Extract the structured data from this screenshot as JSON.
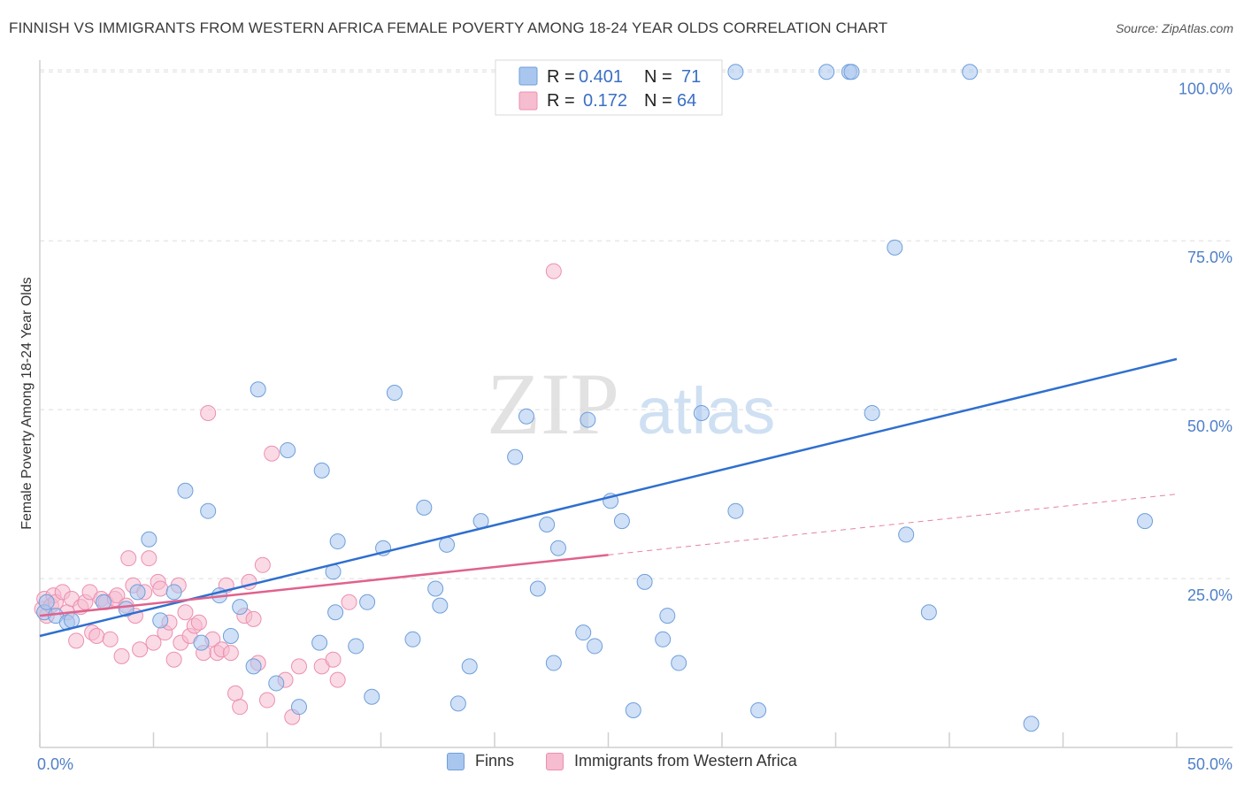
{
  "header": {
    "title": "FINNISH VS IMMIGRANTS FROM WESTERN AFRICA FEMALE POVERTY AMONG 18-24 YEAR OLDS CORRELATION CHART",
    "source": "Source: ZipAtlas.com"
  },
  "watermark": {
    "zip": "ZIP",
    "atlas": "atlas"
  },
  "legend": {
    "rows": [
      {
        "r_label": "R =",
        "r_value": "0.401",
        "n_label": "N =",
        "n_value": "71"
      },
      {
        "r_label": "R =",
        "r_value": "0.172",
        "n_label": "N =",
        "n_value": "64"
      }
    ]
  },
  "bottom_legend": {
    "finns": "Finns",
    "immigrants": "Immigrants from Western Africa"
  },
  "colors": {
    "finns_fill": "#a9c6ee",
    "finns_stroke": "#6e9fdb",
    "finns_line": "#2f6fcf",
    "imm_fill": "#f6bccf",
    "imm_stroke": "#ec8fb0",
    "imm_line": "#e0628d",
    "axis_blue": "#4f80c8",
    "grid": "#dddddd"
  },
  "chart_data": {
    "type": "scatter",
    "title": "FINNISH VS IMMIGRANTS FROM WESTERN AFRICA FEMALE POVERTY AMONG 18-24 YEAR OLDS CORRELATION CHART",
    "xlabel": "",
    "ylabel": "Female Poverty Among 18-24 Year Olds",
    "xlim": [
      0,
      50
    ],
    "ylim": [
      0,
      102
    ],
    "x_tick_labels": [
      "0.0%",
      "50.0%"
    ],
    "y_ticks": [
      25,
      50,
      75,
      100
    ],
    "y_tick_labels": [
      "25.0%",
      "50.0%",
      "75.0%",
      "100.0%"
    ],
    "grid": true,
    "legend_position": "top-center",
    "series": [
      {
        "name": "Finns",
        "R": 0.401,
        "N": 71,
        "trend": {
          "x": [
            0,
            50
          ],
          "y": [
            16.5,
            57.5
          ],
          "dashed_from": null
        },
        "points": [
          [
            0.2,
            20.0
          ],
          [
            0.3,
            21.5
          ],
          [
            0.7,
            19.5
          ],
          [
            1.2,
            18.5
          ],
          [
            1.4,
            18.8
          ],
          [
            2.8,
            21.5
          ],
          [
            3.8,
            20.5
          ],
          [
            4.3,
            23.0
          ],
          [
            4.8,
            30.8
          ],
          [
            5.3,
            18.8
          ],
          [
            5.9,
            23.0
          ],
          [
            6.4,
            38.0
          ],
          [
            7.1,
            15.5
          ],
          [
            7.4,
            35.0
          ],
          [
            7.9,
            22.5
          ],
          [
            8.4,
            16.5
          ],
          [
            8.8,
            20.8
          ],
          [
            9.4,
            12.0
          ],
          [
            9.6,
            53.0
          ],
          [
            10.4,
            9.5
          ],
          [
            10.9,
            44.0
          ],
          [
            11.4,
            6.0
          ],
          [
            12.3,
            15.5
          ],
          [
            12.4,
            41.0
          ],
          [
            12.9,
            26.0
          ],
          [
            13.0,
            20.0
          ],
          [
            13.1,
            30.5
          ],
          [
            13.9,
            15.0
          ],
          [
            14.4,
            21.5
          ],
          [
            14.6,
            7.5
          ],
          [
            15.1,
            29.5
          ],
          [
            15.6,
            52.5
          ],
          [
            16.4,
            16.0
          ],
          [
            16.9,
            35.5
          ],
          [
            17.4,
            23.5
          ],
          [
            17.6,
            21.0
          ],
          [
            17.9,
            30.0
          ],
          [
            18.4,
            6.5
          ],
          [
            18.9,
            12.0
          ],
          [
            19.4,
            33.5
          ],
          [
            20.9,
            43.0
          ],
          [
            21.4,
            49.0
          ],
          [
            21.9,
            23.5
          ],
          [
            22.3,
            33.0
          ],
          [
            22.6,
            12.5
          ],
          [
            22.8,
            29.5
          ],
          [
            23.9,
            17.0
          ],
          [
            24.1,
            48.5
          ],
          [
            24.4,
            15.0
          ],
          [
            25.1,
            36.5
          ],
          [
            25.6,
            33.5
          ],
          [
            26.1,
            5.5
          ],
          [
            26.6,
            24.5
          ],
          [
            27.4,
            16.0
          ],
          [
            27.6,
            19.5
          ],
          [
            28.1,
            12.5
          ],
          [
            29.1,
            49.5
          ],
          [
            30.6,
            35.0
          ],
          [
            31.6,
            5.5
          ],
          [
            36.6,
            49.5
          ],
          [
            37.6,
            74.0
          ],
          [
            38.1,
            31.5
          ],
          [
            39.1,
            20.0
          ],
          [
            43.6,
            3.5
          ],
          [
            48.6,
            33.5
          ],
          [
            21.6,
            100
          ],
          [
            30.6,
            100
          ],
          [
            34.6,
            100
          ],
          [
            35.6,
            100
          ],
          [
            35.7,
            100
          ],
          [
            40.9,
            100
          ]
        ]
      },
      {
        "name": "Immigrants from Western Africa",
        "R": 0.172,
        "N": 64,
        "trend": {
          "x": [
            0,
            50
          ],
          "y": [
            19.5,
            37.5
          ],
          "solid_until_x": 25
        },
        "points": [
          [
            0.1,
            20.5
          ],
          [
            0.2,
            22.0
          ],
          [
            0.3,
            19.5
          ],
          [
            0.5,
            21.0
          ],
          [
            0.6,
            22.5
          ],
          [
            0.7,
            21.5
          ],
          [
            1.0,
            23.0
          ],
          [
            1.2,
            20.0
          ],
          [
            1.4,
            22.0
          ],
          [
            1.6,
            15.8
          ],
          [
            1.8,
            20.8
          ],
          [
            2.0,
            21.5
          ],
          [
            2.2,
            23.0
          ],
          [
            2.3,
            17.0
          ],
          [
            2.5,
            16.5
          ],
          [
            2.7,
            22.0
          ],
          [
            2.9,
            21.5
          ],
          [
            3.1,
            16.0
          ],
          [
            3.3,
            22.0
          ],
          [
            3.4,
            22.5
          ],
          [
            3.6,
            13.5
          ],
          [
            3.8,
            21.0
          ],
          [
            3.9,
            28.0
          ],
          [
            4.1,
            24.0
          ],
          [
            4.2,
            19.5
          ],
          [
            4.4,
            14.5
          ],
          [
            4.6,
            23.0
          ],
          [
            4.8,
            28.0
          ],
          [
            5.0,
            15.5
          ],
          [
            5.2,
            24.5
          ],
          [
            5.3,
            23.5
          ],
          [
            5.5,
            17.0
          ],
          [
            5.7,
            18.5
          ],
          [
            5.9,
            13.0
          ],
          [
            6.1,
            24.0
          ],
          [
            6.2,
            15.5
          ],
          [
            6.4,
            20.0
          ],
          [
            6.6,
            16.5
          ],
          [
            6.8,
            18.0
          ],
          [
            7.0,
            18.5
          ],
          [
            7.2,
            14.0
          ],
          [
            7.4,
            49.5
          ],
          [
            7.6,
            16.0
          ],
          [
            7.8,
            14.0
          ],
          [
            8.0,
            14.5
          ],
          [
            8.2,
            24.0
          ],
          [
            8.4,
            14.0
          ],
          [
            8.6,
            8.0
          ],
          [
            8.8,
            6.0
          ],
          [
            9.0,
            19.5
          ],
          [
            9.2,
            24.5
          ],
          [
            9.4,
            19.0
          ],
          [
            9.6,
            12.5
          ],
          [
            9.8,
            27.0
          ],
          [
            10.0,
            7.0
          ],
          [
            10.2,
            43.5
          ],
          [
            10.8,
            10.0
          ],
          [
            11.1,
            4.5
          ],
          [
            11.4,
            12.0
          ],
          [
            12.4,
            12.0
          ],
          [
            12.9,
            13.0
          ],
          [
            13.1,
            10.0
          ],
          [
            13.6,
            21.5
          ],
          [
            22.6,
            70.5
          ]
        ]
      }
    ]
  }
}
